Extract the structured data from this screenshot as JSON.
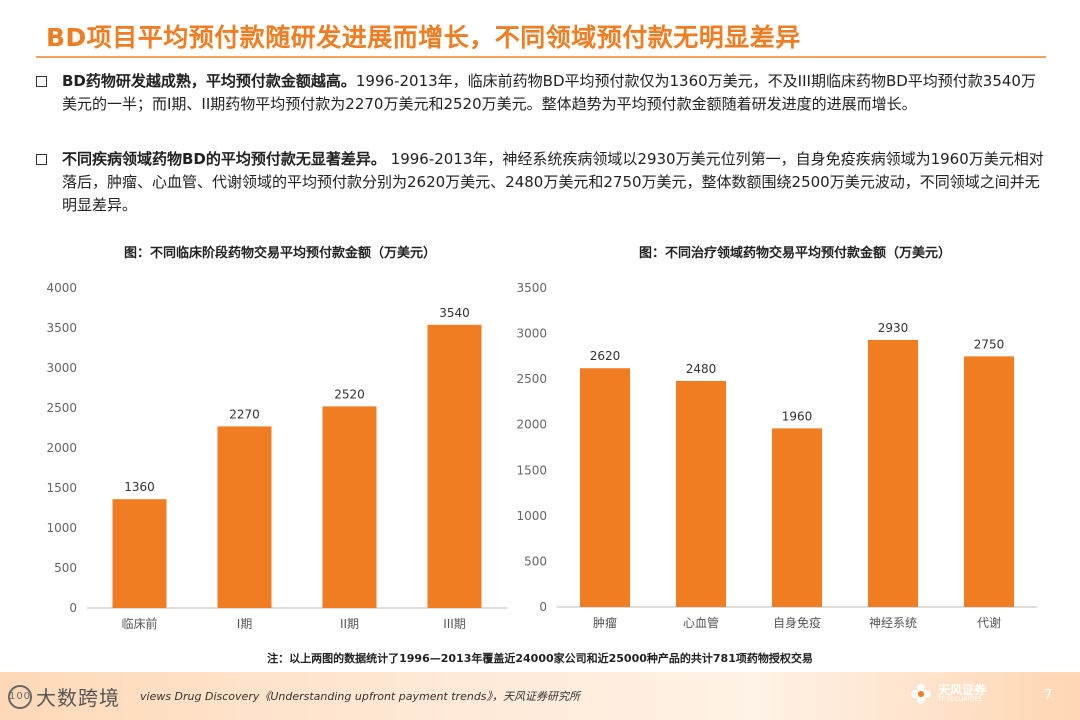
{
  "title": "BD项目平均预付款随研发进展而增长，不同领域预付款无明显差异",
  "bullets": [
    {
      "lead": "BD药物研发越成熟，平均预付款金额越高。",
      "body": "1996-2013年，临床前药物BD平均预付款仅为1360万美元，不及III期临床药物BD平均预付款3540万美元的一半；而I期、II期药物平均预付款为2270万美元和2520万美元。整体趋势为平均预付款金额随着研发进度的进展而增长。"
    },
    {
      "lead": "不同疾病领域药物BD的平均预付款无显著差异。",
      "body": " 1996-2013年，神经系统疾病领域以2930万美元位列第一，自身免疫疾病领域为1960万美元相对落后，肿瘤、心血管、代谢领域的平均预付款分别为2620万美元、2480万美元和2750万美元，整体数额围绕2500万美元波动，不同领域之间并无明显差异。"
    }
  ],
  "chart_data": [
    {
      "type": "bar",
      "title": "图：不同临床阶段药物交易平均预付款金额（万美元）",
      "categories": [
        "临床前",
        "I期",
        "II期",
        "III期"
      ],
      "values": [
        1360,
        2270,
        2520,
        3540
      ],
      "ylim": [
        0,
        4000
      ],
      "yticks": [
        0,
        500,
        1000,
        1500,
        2000,
        2500,
        3000,
        3500,
        4000
      ],
      "color": "#f07d21"
    },
    {
      "type": "bar",
      "title": "图：不同治疗领域药物交易平均预付款金额（万美元）",
      "categories": [
        "肿瘤",
        "心血管",
        "自身免疫",
        "神经系统",
        "代谢"
      ],
      "values": [
        2620,
        2480,
        1960,
        2930,
        2750
      ],
      "ylim": [
        0,
        3500
      ],
      "yticks": [
        0,
        500,
        1000,
        1500,
        2000,
        2500,
        3000,
        3500
      ],
      "color": "#f07d21"
    }
  ],
  "note": "注：以上两图的数据统计了1996—2013年覆盖近24000家公司和近25000种产品的共计781项药物授权交易",
  "source": "views Drug Discovery《Understanding upfront payment trends》，天风证券研究所",
  "watermark": "大数跨境",
  "watermark_mark": "100",
  "brand": {
    "name": "天风证券",
    "sub": "TF SECURITIES"
  },
  "page_number": "7",
  "colors": {
    "accent": "#f07d21",
    "bar": "#f07d21"
  },
  "icons": {
    "bullet": "square-bullet-icon",
    "brand": "flower-logo-icon"
  }
}
